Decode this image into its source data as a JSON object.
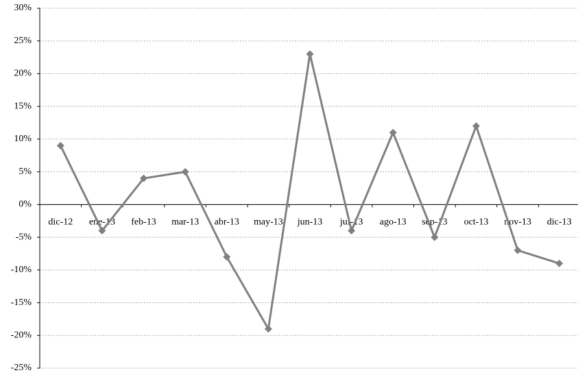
{
  "chart_data": {
    "type": "line",
    "categories": [
      "dic-12",
      "ene-13",
      "feb-13",
      "mar-13",
      "abr-13",
      "may-13",
      "jun-13",
      "jul-13",
      "ago-13",
      "sep-13",
      "oct-13",
      "nov-13",
      "dic-13"
    ],
    "values": [
      9,
      -4,
      4,
      5,
      -8,
      -19,
      23,
      -4,
      11,
      -5,
      12,
      -7,
      -9
    ],
    "color": "#808080",
    "ylim": [
      -25,
      30
    ],
    "yticks": [
      {
        "value": -25,
        "label": "-25%"
      },
      {
        "value": -20,
        "label": "-20%"
      },
      {
        "value": -15,
        "label": "-15%"
      },
      {
        "value": -10,
        "label": "-10%"
      },
      {
        "value": -5,
        "label": "-5%"
      },
      {
        "value": 0,
        "label": "0%"
      },
      {
        "value": 5,
        "label": "5%"
      },
      {
        "value": 10,
        "label": "10%"
      },
      {
        "value": 15,
        "label": "15%"
      },
      {
        "value": 20,
        "label": "20%"
      },
      {
        "value": 25,
        "label": "25%"
      },
      {
        "value": 30,
        "label": "30%"
      }
    ],
    "grid": true
  }
}
